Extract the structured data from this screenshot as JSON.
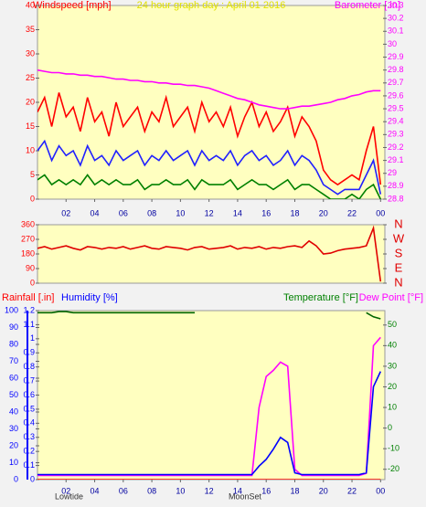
{
  "chart_data": [
    {
      "type": "line",
      "title": "24 hour graph day : April 01 2016",
      "ylabel": "Windspeed [mph]",
      "y2label": "Barometer [.in]",
      "x": [
        0,
        0.5,
        1,
        1.5,
        2,
        2.5,
        3,
        3.5,
        4,
        4.5,
        5,
        5.5,
        6,
        6.5,
        7,
        7.5,
        8,
        8.5,
        9,
        9.5,
        10,
        10.5,
        11,
        11.5,
        12,
        12.5,
        13,
        13.5,
        14,
        14.5,
        15,
        15.5,
        16,
        16.5,
        17,
        17.5,
        18,
        18.5,
        19,
        19.5,
        20,
        20.5,
        21,
        21.5,
        22,
        22.5,
        23,
        23.5,
        24
      ],
      "xlim": [
        0,
        24.3
      ],
      "xticks": [
        {
          "value": 2,
          "label": "02"
        },
        {
          "value": 4,
          "label": "04"
        },
        {
          "value": 6,
          "label": "06"
        },
        {
          "value": 8,
          "label": "08"
        },
        10,
        12,
        14,
        16,
        18,
        20,
        22,
        {
          "value": 24,
          "label": "00"
        }
      ],
      "ylim": [
        0,
        40
      ],
      "yticks": [
        0,
        5,
        10,
        15,
        20,
        25,
        30,
        35,
        40
      ],
      "y2lim": [
        28.8,
        30.3
      ],
      "y2ticks": [
        28.8,
        28.9,
        29,
        29.1,
        29.2,
        29.3,
        29.4,
        29.5,
        29.6,
        29.7,
        29.8,
        29.9,
        30,
        30.1,
        30.2,
        30.3
      ],
      "series": [
        {
          "color": "#ff0000",
          "values": [
            18,
            21,
            15,
            22,
            17,
            19,
            14,
            21,
            16,
            18,
            13,
            20,
            15,
            17,
            19,
            14,
            18,
            16,
            21,
            15,
            17,
            19,
            14,
            20,
            16,
            18,
            15,
            19,
            13,
            17,
            20,
            15,
            18,
            14,
            16,
            19,
            13,
            17,
            15,
            12,
            6,
            4,
            3,
            4,
            5,
            4,
            10,
            15,
            3
          ]
        },
        {
          "color": "#2020ff",
          "values": [
            10,
            12,
            8,
            11,
            9,
            10,
            7,
            11,
            8,
            9,
            7,
            10,
            8,
            9,
            10,
            7,
            9,
            8,
            10,
            8,
            9,
            10,
            7,
            10,
            8,
            9,
            8,
            10,
            7,
            9,
            10,
            8,
            9,
            7,
            8,
            10,
            7,
            9,
            8,
            6,
            3,
            2,
            1,
            2,
            2,
            2,
            5,
            8,
            1
          ]
        },
        {
          "color": "#008000",
          "values": [
            4,
            5,
            3,
            4,
            3,
            4,
            3,
            5,
            3,
            4,
            3,
            4,
            3,
            3,
            4,
            2,
            3,
            3,
            4,
            3,
            3,
            4,
            2,
            4,
            3,
            3,
            3,
            4,
            2,
            3,
            4,
            3,
            3,
            2,
            3,
            4,
            2,
            3,
            3,
            2,
            1,
            0,
            0,
            0,
            1,
            0,
            2,
            3,
            0
          ]
        },
        {
          "color": "#ff00ff",
          "axis": "y2",
          "values": [
            29.8,
            29.79,
            29.78,
            29.78,
            29.77,
            29.77,
            29.76,
            29.76,
            29.75,
            29.75,
            29.74,
            29.73,
            29.73,
            29.72,
            29.72,
            29.71,
            29.71,
            29.7,
            29.7,
            29.69,
            29.69,
            29.68,
            29.68,
            29.67,
            29.66,
            29.64,
            29.62,
            29.6,
            29.58,
            29.57,
            29.55,
            29.53,
            29.52,
            29.51,
            29.5,
            29.5,
            29.51,
            29.52,
            29.52,
            29.53,
            29.54,
            29.55,
            29.57,
            29.58,
            29.6,
            29.61,
            29.63,
            29.64,
            29.64
          ]
        }
      ]
    },
    {
      "type": "line",
      "x": [
        0,
        0.5,
        1,
        1.5,
        2,
        2.5,
        3,
        3.5,
        4,
        4.5,
        5,
        5.5,
        6,
        6.5,
        7,
        7.5,
        8,
        8.5,
        9,
        9.5,
        10,
        10.5,
        11,
        11.5,
        12,
        12.5,
        13,
        13.5,
        14,
        14.5,
        15,
        15.5,
        16,
        16.5,
        17,
        17.5,
        18,
        18.5,
        19,
        19.5,
        20,
        20.5,
        21,
        21.5,
        22,
        22.5,
        23,
        23.5,
        24
      ],
      "xlim": [
        0,
        24.3
      ],
      "ylim": [
        0,
        360
      ],
      "yticks": [
        0,
        90,
        180,
        270,
        360
      ],
      "y2lim": [
        0,
        360
      ],
      "y2ticks": [
        {
          "value": 0,
          "label": "N"
        },
        {
          "value": 90,
          "label": "E"
        },
        {
          "value": 180,
          "label": "S"
        },
        {
          "value": 270,
          "label": "W"
        },
        {
          "value": 360,
          "label": "N"
        }
      ],
      "series": [
        {
          "color": "#e00000",
          "values": [
            215,
            225,
            210,
            220,
            230,
            215,
            205,
            225,
            220,
            210,
            220,
            215,
            225,
            210,
            220,
            230,
            215,
            210,
            225,
            220,
            215,
            205,
            220,
            225,
            210,
            215,
            220,
            230,
            210,
            220,
            215,
            225,
            210,
            220,
            215,
            225,
            230,
            220,
            260,
            230,
            180,
            185,
            200,
            210,
            215,
            220,
            230,
            340,
            10
          ]
        }
      ]
    },
    {
      "type": "line",
      "ylabel": "Humidity [%]",
      "y3label": "Rainfall [.in]",
      "y2label": "Temperature [°F]",
      "y4label": "Dew Point [°F]",
      "annotations": [
        "Lowtide",
        "MoonSet"
      ],
      "x": [
        0,
        0.5,
        1,
        1.5,
        2,
        2.5,
        3,
        3.5,
        4,
        4.5,
        5,
        5.5,
        6,
        6.5,
        7,
        7.5,
        8,
        8.5,
        9,
        9.5,
        10,
        10.5,
        11,
        11.5,
        12,
        12.5,
        13,
        13.5,
        14,
        14.5,
        15,
        15.5,
        16,
        16.5,
        17,
        17.5,
        18,
        18.5,
        19,
        19.5,
        20,
        20.5,
        21,
        21.5,
        22,
        22.5,
        23,
        23.5,
        24
      ],
      "xlim": [
        0,
        24.3
      ],
      "xticks": [
        {
          "value": 2,
          "label": "02"
        },
        {
          "value": 4,
          "label": "04"
        },
        {
          "value": 6,
          "label": "06"
        },
        {
          "value": 8,
          "label": "08"
        },
        10,
        12,
        14,
        16,
        18,
        20,
        22,
        {
          "value": 24,
          "label": "00"
        }
      ],
      "ylim": [
        0,
        100
      ],
      "yticks": [
        0,
        10,
        20,
        30,
        40,
        50,
        60,
        70,
        80,
        90,
        100
      ],
      "y3lim": [
        0,
        1.2
      ],
      "y3ticks": [
        0,
        0.1,
        0.2,
        0.3,
        0.4,
        0.5,
        0.6,
        0.7,
        0.8,
        0.9,
        1,
        1.1,
        1.2
      ],
      "y2lim": [
        -25,
        57
      ],
      "y2ticks": [
        -20,
        -10,
        0,
        10,
        20,
        30,
        40,
        50
      ],
      "series": [
        {
          "color": "#ff0000",
          "axis": "y3",
          "values": [
            0,
            0,
            0,
            0,
            0,
            0,
            0,
            0,
            0,
            0,
            0,
            0,
            0,
            0,
            0,
            0,
            0,
            0,
            0,
            0,
            0,
            0,
            0,
            0,
            0,
            0,
            0,
            0,
            0,
            0,
            0,
            0,
            0,
            0,
            0,
            0,
            0,
            0,
            0,
            0,
            0,
            0,
            0,
            0,
            0,
            0,
            0,
            0,
            0
          ]
        },
        {
          "color": "#006400",
          "axis": "y2",
          "values": [
            56,
            56,
            56,
            56.5,
            56.5,
            56,
            56,
            56,
            56,
            56,
            56,
            56,
            56,
            56,
            56,
            56,
            56,
            56,
            56,
            56,
            56,
            56,
            56,
            null,
            null,
            null,
            null,
            null,
            null,
            null,
            null,
            null,
            null,
            null,
            null,
            null,
            null,
            null,
            null,
            null,
            null,
            null,
            null,
            null,
            null,
            null,
            56,
            54,
            53
          ]
        },
        {
          "color": "#ff00ff",
          "axis": "y2",
          "values": [
            -23,
            -23,
            -23,
            -23,
            -23,
            -23,
            -23,
            -23,
            -23,
            -23,
            -23,
            -23,
            -23,
            -23,
            -23,
            -23,
            -23,
            -23,
            -23,
            -23,
            -23,
            -23,
            -23,
            -23,
            -23,
            -23,
            -23,
            -23,
            -23,
            -23,
            -23,
            10,
            25,
            28,
            32,
            30,
            -20,
            -23,
            -23,
            -23,
            -23,
            -23,
            -23,
            -23,
            -23,
            -23,
            -22,
            40,
            44
          ]
        },
        {
          "color": "#0000ff",
          "values": [
            3,
            3,
            3,
            3,
            3,
            3,
            3,
            3,
            3,
            3,
            3,
            3,
            3,
            3,
            3,
            3,
            3,
            3,
            3,
            3,
            3,
            3,
            3,
            3,
            3,
            3,
            3,
            3,
            3,
            3,
            3,
            8,
            12,
            18,
            25,
            22,
            4,
            3,
            3,
            3,
            3,
            3,
            3,
            3,
            3,
            3,
            4,
            55,
            64
          ]
        }
      ]
    }
  ]
}
